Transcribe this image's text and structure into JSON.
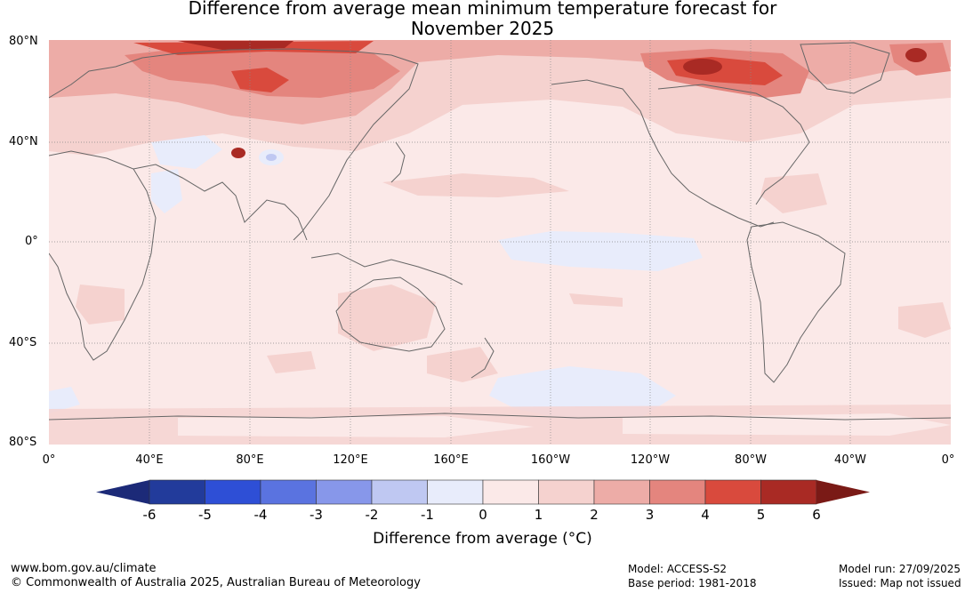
{
  "title_line1": "Difference from average mean minimum temperature forecast for",
  "title_line2": "November 2025",
  "lat_labels": [
    "80°N",
    "40°N",
    "0°",
    "40°S",
    "80°S"
  ],
  "lon_labels": [
    "0°",
    "40°E",
    "80°E",
    "120°E",
    "160°E",
    "160°W",
    "120°W",
    "80°W",
    "40°W",
    "0°"
  ],
  "colorbar": {
    "title": "Difference from average (°C)",
    "ticks": [
      "-6",
      "-5",
      "-4",
      "-3",
      "-2",
      "-1",
      "0",
      "1",
      "2",
      "3",
      "4",
      "5",
      "6"
    ],
    "colors": [
      "#223b9b",
      "#2e4fd6",
      "#5a73e0",
      "#8797ea",
      "#bfc8f2",
      "#e8ecfb",
      "#fbe9e8",
      "#f5d2cf",
      "#edaca7",
      "#e4857e",
      "#d94a3d",
      "#a92a24"
    ],
    "under_color": "#1c2a78",
    "over_color": "#7a1a16"
  },
  "footer": {
    "website": "www.bom.gov.au/climate",
    "copyright": "© Commonwealth of Australia 2025, Australian Bureau of Meteorology",
    "model": "Model: ACCESS-S2",
    "base_period": "Base period: 1981-2018",
    "model_run": "Model run: 27/09/2025",
    "issued": "Issued: Map not issued"
  }
}
